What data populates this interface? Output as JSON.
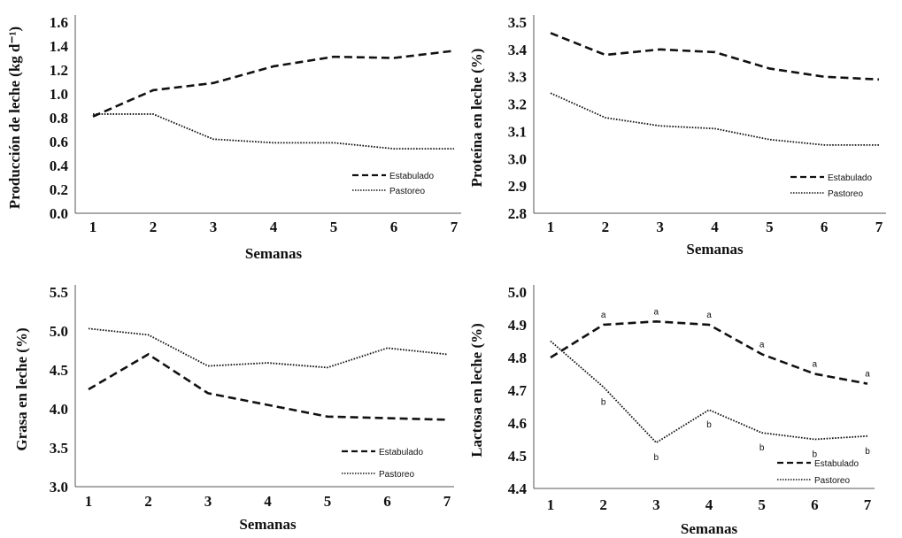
{
  "chart_data": [
    {
      "type": "line",
      "title": "",
      "xlabel": "Semanas",
      "ylabel": "Producción de leche (kg d⁻¹)",
      "categories": [
        "1",
        "2",
        "3",
        "4",
        "5",
        "6",
        "7"
      ],
      "yticks": [
        "0.0",
        "0.2",
        "0.4",
        "0.6",
        "0.8",
        "1.0",
        "1.2",
        "1.4",
        "1.6"
      ],
      "ylim": [
        0,
        1.6
      ],
      "legend_position": "bottom-right",
      "series": [
        {
          "name": "Estabulado",
          "style": "dashed",
          "values": [
            0.81,
            1.03,
            1.09,
            1.23,
            1.31,
            1.3,
            1.36
          ]
        },
        {
          "name": "Pastoreo",
          "style": "dotted",
          "values": [
            0.83,
            0.83,
            0.62,
            0.59,
            0.59,
            0.54,
            0.54
          ]
        }
      ]
    },
    {
      "type": "line",
      "title": "",
      "xlabel": "Semanas",
      "ylabel": "Proteína en leche (%)",
      "categories": [
        "1",
        "2",
        "3",
        "4",
        "5",
        "6",
        "7"
      ],
      "yticks": [
        "2.8",
        "2.9",
        "3.0",
        "3.1",
        "3.2",
        "3.3",
        "3.4",
        "3.5"
      ],
      "ylim": [
        2.8,
        3.5
      ],
      "legend_position": "bottom-right",
      "series": [
        {
          "name": "Estabulado",
          "style": "dashed",
          "values": [
            3.46,
            3.38,
            3.4,
            3.39,
            3.33,
            3.3,
            3.29
          ]
        },
        {
          "name": "Pastoreo",
          "style": "dotted",
          "values": [
            3.24,
            3.15,
            3.12,
            3.11,
            3.07,
            3.05,
            3.05
          ]
        }
      ]
    },
    {
      "type": "line",
      "title": "",
      "xlabel": "Semanas",
      "ylabel": "Grasa en leche (%)",
      "categories": [
        "1",
        "2",
        "3",
        "4",
        "5",
        "6",
        "7"
      ],
      "yticks": [
        "3.0",
        "3.5",
        "4.0",
        "4.5",
        "5.0",
        "5.5"
      ],
      "ylim": [
        3.0,
        5.5
      ],
      "legend_position": "bottom-right",
      "series": [
        {
          "name": "Estabulado",
          "style": "dashed",
          "values": [
            4.25,
            4.7,
            4.2,
            4.05,
            3.9,
            3.88,
            3.86
          ]
        },
        {
          "name": "Pastoreo",
          "style": "dotted",
          "values": [
            5.03,
            4.95,
            4.55,
            4.59,
            4.53,
            4.78,
            4.7
          ]
        }
      ]
    },
    {
      "type": "line",
      "title": "",
      "xlabel": "Semanas",
      "ylabel": "Lactosa en leche (%)",
      "categories": [
        "1",
        "2",
        "3",
        "4",
        "5",
        "6",
        "7"
      ],
      "yticks": [
        "4.4",
        "4.5",
        "4.6",
        "4.7",
        "4.8",
        "4.9",
        "5.0"
      ],
      "ylim": [
        4.4,
        5.0
      ],
      "legend_position": "bottom-right",
      "series": [
        {
          "name": "Estabulado",
          "style": "dashed",
          "values": [
            4.8,
            4.9,
            4.91,
            4.9,
            4.81,
            4.75,
            4.72
          ],
          "annotations": [
            "",
            "a",
            "a",
            "a",
            "a",
            "a",
            "a"
          ]
        },
        {
          "name": "Pastoreo",
          "style": "dotted",
          "values": [
            4.85,
            4.71,
            4.54,
            4.64,
            4.57,
            4.55,
            4.56
          ],
          "annotations": [
            "",
            "b",
            "b",
            "b",
            "b",
            "b",
            "b"
          ]
        }
      ]
    }
  ]
}
